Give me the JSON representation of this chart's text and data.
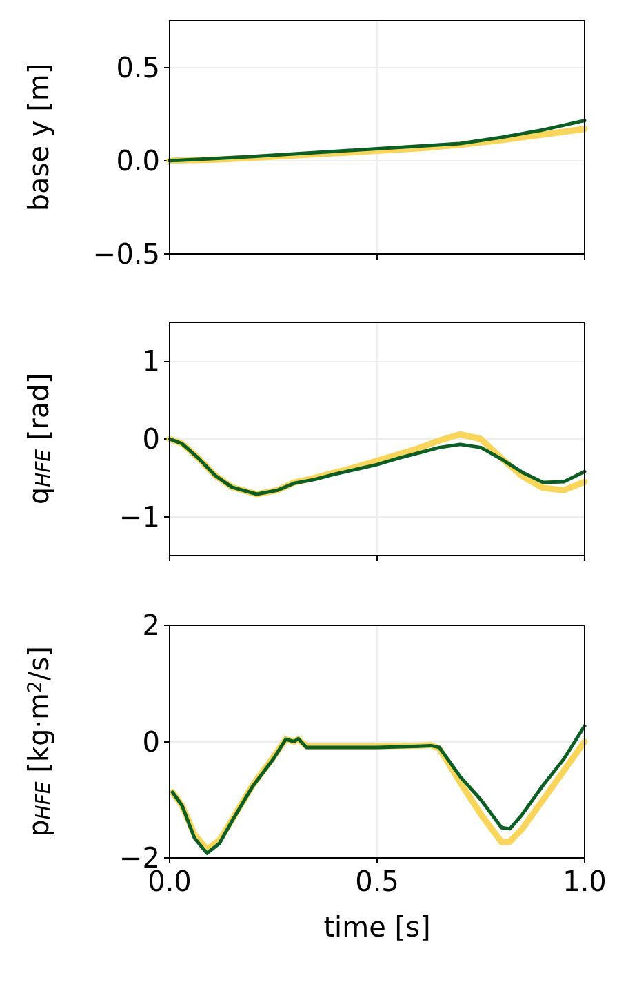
{
  "chart_data": [
    {
      "type": "line",
      "ylabel": "base y [m]",
      "xlim": [
        0,
        1
      ],
      "xticks": [
        {
          "value": 0,
          "label": null
        },
        {
          "value": 0.5,
          "label": null
        },
        {
          "value": 1,
          "label": null
        }
      ],
      "ylim": [
        -0.5,
        0.75
      ],
      "yticks": [
        {
          "value": -0.5,
          "label": "−0.5"
        },
        {
          "value": 0,
          "label": "0.0"
        },
        {
          "value": 0.5,
          "label": "0.5"
        }
      ],
      "grid": true,
      "tick_labels": "y",
      "line_style": "solid",
      "marker": "none",
      "series": [
        {
          "color": "#f9d55b",
          "x": [
            0,
            0.1,
            0.2,
            0.3,
            0.4,
            0.5,
            0.6,
            0.7,
            0.8,
            0.9,
            1.0
          ],
          "values": [
            0,
            0.005,
            0.015,
            0.028,
            0.04,
            0.053,
            0.066,
            0.085,
            0.11,
            0.14,
            0.17
          ]
        },
        {
          "color": "#0b5e24",
          "x": [
            0,
            0.1,
            0.2,
            0.3,
            0.4,
            0.5,
            0.6,
            0.7,
            0.8,
            0.9,
            1.0
          ],
          "values": [
            0,
            0.01,
            0.022,
            0.036,
            0.05,
            0.064,
            0.078,
            0.092,
            0.125,
            0.165,
            0.215
          ]
        }
      ]
    },
    {
      "type": "line",
      "ylabel": "q$_{HFE}$ [rad]",
      "xlim": [
        0,
        1
      ],
      "xticks": [
        {
          "value": 0,
          "label": null
        },
        {
          "value": 0.5,
          "label": null
        },
        {
          "value": 1,
          "label": null
        }
      ],
      "ylim": [
        -1.5,
        1.5
      ],
      "yticks": [
        {
          "value": -1,
          "label": "−1"
        },
        0,
        1
      ],
      "grid": true,
      "tick_labels": "y",
      "line_style": "solid",
      "marker": "none",
      "series": [
        {
          "color": "#f9d55b",
          "x": [
            0,
            0.03,
            0.07,
            0.11,
            0.15,
            0.21,
            0.26,
            0.3,
            0.35,
            0.4,
            0.45,
            0.5,
            0.55,
            0.6,
            0.65,
            0.7,
            0.75,
            0.8,
            0.85,
            0.9,
            0.95,
            1.0
          ],
          "values": [
            0,
            -0.06,
            -0.25,
            -0.47,
            -0.62,
            -0.71,
            -0.66,
            -0.56,
            -0.5,
            -0.43,
            -0.36,
            -0.28,
            -0.2,
            -0.12,
            -0.02,
            0.06,
            0.0,
            -0.25,
            -0.48,
            -0.63,
            -0.66,
            -0.55
          ]
        },
        {
          "color": "#0b5e24",
          "x": [
            0,
            0.03,
            0.07,
            0.11,
            0.15,
            0.21,
            0.26,
            0.3,
            0.35,
            0.4,
            0.45,
            0.5,
            0.55,
            0.6,
            0.65,
            0.7,
            0.75,
            0.8,
            0.85,
            0.9,
            0.95,
            1.0
          ],
          "values": [
            0,
            -0.06,
            -0.25,
            -0.47,
            -0.62,
            -0.71,
            -0.66,
            -0.57,
            -0.52,
            -0.45,
            -0.39,
            -0.33,
            -0.25,
            -0.18,
            -0.11,
            -0.07,
            -0.11,
            -0.26,
            -0.43,
            -0.56,
            -0.55,
            -0.42
          ]
        }
      ]
    },
    {
      "type": "line",
      "xlabel": "time [s]",
      "ylabel": "p$_{HFE}$ [kg·m$^{2}$/s]",
      "xlim": [
        0,
        1
      ],
      "xticks": [
        {
          "value": 0,
          "label": "0.0"
        },
        {
          "value": 0.5,
          "label": "0.5"
        },
        {
          "value": 1,
          "label": "1.0"
        }
      ],
      "ylim": [
        -2,
        2
      ],
      "yticks": [
        {
          "value": -2,
          "label": "−2"
        },
        0,
        2
      ],
      "grid": true,
      "line_style": "solid",
      "marker": "none",
      "series": [
        {
          "color": "#f9d55b",
          "x": [
            0.007,
            0.03,
            0.06,
            0.09,
            0.12,
            0.15,
            0.2,
            0.25,
            0.28,
            0.3,
            0.31,
            0.33,
            0.4,
            0.5,
            0.6,
            0.63,
            0.65,
            0.7,
            0.75,
            0.8,
            0.82,
            0.85,
            0.9,
            0.95,
            1.0
          ],
          "values": [
            -0.87,
            -1.1,
            -1.6,
            -1.85,
            -1.7,
            -1.35,
            -0.75,
            -0.27,
            0.04,
            0.0,
            0.04,
            -0.08,
            -0.08,
            -0.08,
            -0.07,
            -0.06,
            -0.12,
            -0.7,
            -1.25,
            -1.73,
            -1.72,
            -1.5,
            -1.0,
            -0.5,
            0.0
          ]
        },
        {
          "color": "#0b5e24",
          "x": [
            0.007,
            0.03,
            0.06,
            0.09,
            0.12,
            0.15,
            0.2,
            0.25,
            0.28,
            0.3,
            0.31,
            0.33,
            0.4,
            0.5,
            0.6,
            0.63,
            0.65,
            0.7,
            0.75,
            0.8,
            0.82,
            0.85,
            0.9,
            0.95,
            1.0
          ],
          "values": [
            -0.87,
            -1.1,
            -1.66,
            -1.92,
            -1.75,
            -1.37,
            -0.77,
            -0.3,
            0.04,
            0.0,
            0.05,
            -0.1,
            -0.1,
            -0.1,
            -0.08,
            -0.07,
            -0.1,
            -0.6,
            -1.0,
            -1.48,
            -1.5,
            -1.25,
            -0.75,
            -0.3,
            0.27
          ]
        }
      ]
    }
  ]
}
